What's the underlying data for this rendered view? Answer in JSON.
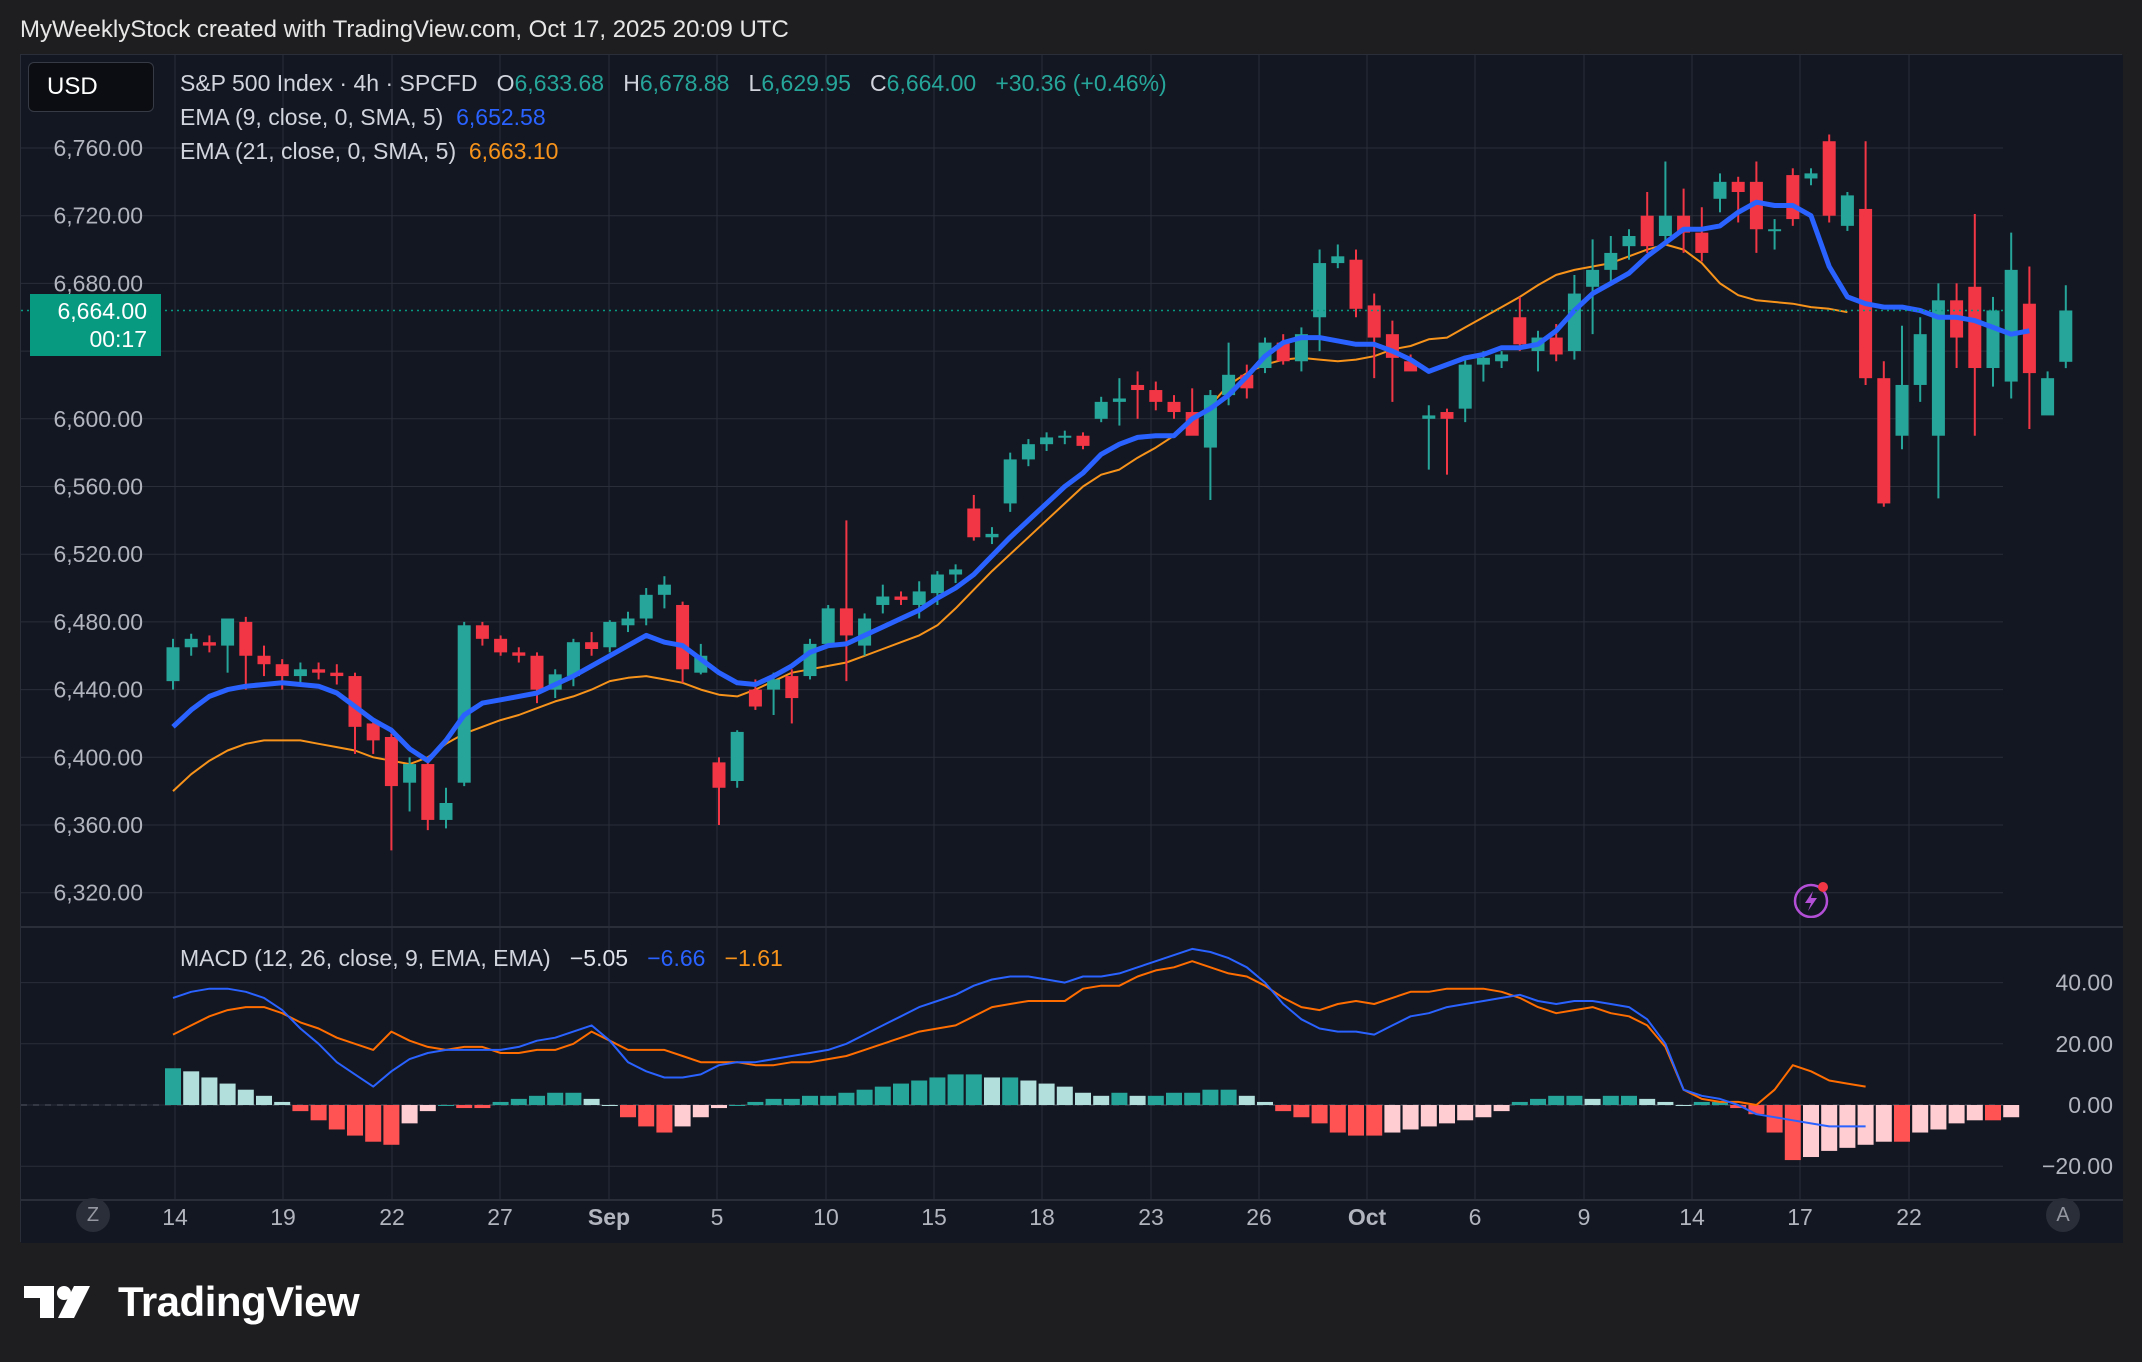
{
  "header": {
    "caption": "MyWeeklyStock created with TradingView.com, Oct 17, 2025 20:09 UTC"
  },
  "currency_button": "USD",
  "legend": {
    "symbol": "S&P 500 Index · 4h · SPCFD",
    "o_label": "O",
    "o_value": "6,633.68",
    "h_label": "H",
    "h_value": "6,678.88",
    "l_label": "L",
    "l_value": "6,629.95",
    "c_label": "C",
    "c_value": "6,664.00",
    "change": "+30.36 (+0.46%)",
    "ema9_label": "EMA (9, close, 0, SMA, 5)",
    "ema9_value": "6,652.58",
    "ema21_label": "EMA (21, close, 0, SMA, 5)",
    "ema21_value": "6,663.10",
    "macd_label": "MACD (12, 26, close, 9, EMA, EMA)",
    "macd_hist": "−5.05",
    "macd_line": "−6.66",
    "macd_signal": "−1.61"
  },
  "price_label": {
    "price": "6,664.00",
    "countdown": "00:17"
  },
  "corner_buttons": {
    "left": "Z",
    "right": "A"
  },
  "brand": {
    "name": "TradingView"
  },
  "colors": {
    "up": "#26a69a",
    "down": "#f23645",
    "ema9": "#2962ff",
    "ema21": "#f7931a",
    "macd": "#2962ff",
    "signal": "#ff6d00",
    "background": "#131722",
    "grid": "#2a2e39"
  },
  "chart_data": [
    {
      "type": "candlestick",
      "title": "S&P 500 Index · 4h · SPCFD",
      "ylim": [
        6300,
        6780
      ],
      "y_ticks": [
        "6,760.00",
        "6,720.00",
        "6,680.00",
        "6,600.00",
        "6,560.00",
        "6,520.00",
        "6,480.00",
        "6,440.00",
        "6,400.00",
        "6,360.00",
        "6,320.00"
      ],
      "x_ticks": [
        "14",
        "19",
        "22",
        "27",
        "Sep",
        "5",
        "10",
        "15",
        "18",
        "23",
        "26",
        "Oct",
        "6",
        "9",
        "14",
        "17",
        "22"
      ],
      "last_price": 6664.0,
      "candles": [
        [
          6445,
          6470,
          6440,
          6465
        ],
        [
          6465,
          6473,
          6460,
          6470
        ],
        [
          6468,
          6472,
          6462,
          6466
        ],
        [
          6466,
          6482,
          6450,
          6482
        ],
        [
          6480,
          6483,
          6440,
          6460
        ],
        [
          6460,
          6466,
          6448,
          6455
        ],
        [
          6455,
          6458,
          6440,
          6448
        ],
        [
          6448,
          6456,
          6443,
          6452
        ],
        [
          6452,
          6456,
          6446,
          6450
        ],
        [
          6450,
          6455,
          6443,
          6448
        ],
        [
          6448,
          6450,
          6402,
          6418
        ],
        [
          6420,
          6422,
          6402,
          6410
        ],
        [
          6412,
          6414,
          6345,
          6383
        ],
        [
          6385,
          6400,
          6368,
          6396
        ],
        [
          6396,
          6398,
          6357,
          6363
        ],
        [
          6363,
          6382,
          6358,
          6373
        ],
        [
          6385,
          6480,
          6383,
          6478
        ],
        [
          6478,
          6480,
          6466,
          6470
        ],
        [
          6470,
          6472,
          6460,
          6462
        ],
        [
          6462,
          6465,
          6456,
          6460
        ],
        [
          6460,
          6462,
          6432,
          6440
        ],
        [
          6440,
          6452,
          6435,
          6449
        ],
        [
          6448,
          6470,
          6442,
          6468
        ],
        [
          6468,
          6474,
          6460,
          6464
        ],
        [
          6465,
          6481,
          6462,
          6480
        ],
        [
          6478,
          6486,
          6474,
          6482
        ],
        [
          6482,
          6500,
          6478,
          6496
        ],
        [
          6496,
          6507,
          6488,
          6502
        ],
        [
          6490,
          6492,
          6444,
          6452
        ],
        [
          6450,
          6467,
          6449,
          6460
        ],
        [
          6397,
          6400,
          6360,
          6382
        ],
        [
          6386,
          6416,
          6382,
          6415
        ],
        [
          6440,
          6446,
          6428,
          6430
        ],
        [
          6440,
          6450,
          6425,
          6446
        ],
        [
          6448,
          6452,
          6420,
          6435
        ],
        [
          6448,
          6470,
          6446,
          6467
        ],
        [
          6467,
          6490,
          6465,
          6488
        ],
        [
          6488,
          6540,
          6445,
          6472
        ],
        [
          6466,
          6485,
          6460,
          6482
        ],
        [
          6490,
          6502,
          6485,
          6495
        ],
        [
          6495,
          6498,
          6490,
          6493
        ],
        [
          6490,
          6504,
          6482,
          6498
        ],
        [
          6497,
          6510,
          6490,
          6508
        ],
        [
          6508,
          6514,
          6503,
          6511
        ],
        [
          6547,
          6555,
          6528,
          6530
        ],
        [
          6530,
          6536,
          6526,
          6532
        ],
        [
          6550,
          6580,
          6545,
          6576
        ],
        [
          6576,
          6588,
          6572,
          6585
        ],
        [
          6585,
          6592,
          6581,
          6589
        ],
        [
          6589,
          6593,
          6585,
          6590
        ],
        [
          6590,
          6592,
          6582,
          6584
        ],
        [
          6600,
          6613,
          6598,
          6610
        ],
        [
          6610,
          6624,
          6596,
          6612
        ],
        [
          6620,
          6628,
          6600,
          6617
        ],
        [
          6617,
          6622,
          6605,
          6610
        ],
        [
          6610,
          6614,
          6600,
          6604
        ],
        [
          6604,
          6618,
          6594,
          6590
        ],
        [
          6583,
          6617,
          6552,
          6614
        ],
        [
          6614,
          6645,
          6608,
          6626
        ],
        [
          6626,
          6632,
          6612,
          6618
        ],
        [
          6630,
          6648,
          6627,
          6645
        ],
        [
          6645,
          6650,
          6632,
          6634
        ],
        [
          6634,
          6654,
          6628,
          6650
        ],
        [
          6660,
          6700,
          6640,
          6692
        ],
        [
          6692,
          6703,
          6689,
          6696
        ],
        [
          6694,
          6700,
          6660,
          6665
        ],
        [
          6667,
          6674,
          6624,
          6648
        ],
        [
          6650,
          6658,
          6610,
          6636
        ],
        [
          6634,
          6638,
          6630,
          6628
        ],
        [
          6600,
          6608,
          6570,
          6602
        ],
        [
          6604,
          6606,
          6567,
          6600
        ],
        [
          6606,
          6636,
          6598,
          6632
        ],
        [
          6632,
          6640,
          6622,
          6636
        ],
        [
          6634,
          6640,
          6630,
          6638
        ],
        [
          6660,
          6672,
          6640,
          6644
        ],
        [
          6640,
          6652,
          6628,
          6648
        ],
        [
          6648,
          6656,
          6634,
          6638
        ],
        [
          6640,
          6685,
          6635,
          6674
        ],
        [
          6678,
          6706,
          6650,
          6688
        ],
        [
          6688,
          6708,
          6680,
          6698
        ],
        [
          6702,
          6712,
          6694,
          6708
        ],
        [
          6720,
          6734,
          6698,
          6702
        ],
        [
          6708,
          6752,
          6704,
          6720
        ],
        [
          6720,
          6736,
          6698,
          6710
        ],
        [
          6710,
          6725,
          6693,
          6698
        ],
        [
          6730,
          6745,
          6722,
          6740
        ],
        [
          6740,
          6743,
          6716,
          6734
        ],
        [
          6740,
          6752,
          6698,
          6712
        ],
        [
          6712,
          6718,
          6700,
          6712
        ],
        [
          6744,
          6748,
          6714,
          6718
        ],
        [
          6742,
          6748,
          6738,
          6745
        ],
        [
          6764,
          6768,
          6716,
          6720
        ],
        [
          6714,
          6734,
          6711,
          6732
        ],
        [
          6724,
          6764,
          6620,
          6624
        ],
        [
          6624,
          6634,
          6548,
          6550
        ],
        [
          6590,
          6655,
          6582,
          6620
        ],
        [
          6620,
          6660,
          6610,
          6650
        ],
        [
          6590,
          6680,
          6553,
          6670
        ],
        [
          6670,
          6680,
          6630,
          6648
        ],
        [
          6678,
          6721,
          6590,
          6630
        ],
        [
          6630,
          6672,
          6619,
          6664
        ],
        [
          6622,
          6710,
          6612,
          6688
        ],
        [
          6668,
          6690,
          6594,
          6627
        ],
        [
          6602,
          6628,
          6603,
          6624
        ],
        [
          6633.68,
          6678.88,
          6629.95,
          6664.0
        ]
      ],
      "ema9": [
        6418,
        6428,
        6436,
        6440,
        6442,
        6443,
        6444,
        6443,
        6442,
        6438,
        6430,
        6422,
        6416,
        6405,
        6398,
        6410,
        6425,
        6432,
        6434,
        6436,
        6438,
        6443,
        6448,
        6454,
        6460,
        6466,
        6472,
        6468,
        6466,
        6458,
        6450,
        6444,
        6443,
        6448,
        6454,
        6462,
        6466,
        6467,
        6472,
        6477,
        6482,
        6487,
        6494,
        6500,
        6508,
        6519,
        6530,
        6540,
        6550,
        6560,
        6568,
        6579,
        6585,
        6589,
        6590,
        6590,
        6600,
        6606,
        6614,
        6625,
        6637,
        6645,
        6648,
        6648,
        6646,
        6644,
        6644,
        6640,
        6635,
        6628,
        6632,
        6636,
        6638,
        6642,
        6642,
        6644,
        6652,
        6664,
        6674,
        6680,
        6686,
        6696,
        6704,
        6712,
        6712,
        6714,
        6722,
        6728,
        6726,
        6726,
        6720,
        6690,
        6672,
        6668,
        6666,
        6666,
        6664,
        6660,
        6660,
        6658,
        6654,
        6650,
        6652
      ],
      "ema21": [
        6380,
        6390,
        6398,
        6404,
        6408,
        6410,
        6410,
        6410,
        6408,
        6406,
        6404,
        6400,
        6398,
        6396,
        6400,
        6408,
        6414,
        6418,
        6422,
        6425,
        6429,
        6433,
        6436,
        6440,
        6445,
        6447,
        6448,
        6446,
        6444,
        6440,
        6437,
        6436,
        6440,
        6445,
        6450,
        6452,
        6454,
        6456,
        6460,
        6464,
        6468,
        6472,
        6478,
        6488,
        6499,
        6510,
        6520,
        6530,
        6540,
        6550,
        6560,
        6567,
        6570,
        6577,
        6583,
        6590,
        6598,
        6608,
        6620,
        6627,
        6632,
        6635,
        6636,
        6635,
        6634,
        6635,
        6637,
        6641,
        6643,
        6647,
        6648,
        6654,
        6660,
        6666,
        6672,
        6679,
        6685,
        6688,
        6690,
        6692,
        6696,
        6700,
        6703,
        6700,
        6692,
        6680,
        6673,
        6670,
        6669,
        6668,
        6666,
        6665,
        6663
      ]
    },
    {
      "type": "macd",
      "title": "MACD (12, 26, close, 9, EMA, EMA)",
      "ylim": [
        -25,
        48
      ],
      "y_ticks": [
        "40.00",
        "20.00",
        "0.00",
        "−20.00"
      ],
      "histogram": [
        12,
        11,
        9,
        7,
        5,
        3,
        1,
        -2,
        -5,
        -8,
        -10,
        -12,
        -13,
        -6,
        -2,
        0,
        -1,
        -1,
        1,
        2,
        3,
        4,
        4,
        2,
        0,
        -4,
        -7,
        -9,
        -7,
        -4,
        -1,
        0,
        1,
        2,
        2,
        3,
        3,
        4,
        5,
        6,
        7,
        8,
        9,
        10,
        10,
        9,
        9,
        8,
        7,
        6,
        4,
        3,
        4,
        3,
        3,
        4,
        4,
        5,
        5,
        3,
        1,
        -2,
        -4,
        -6,
        -9,
        -10,
        -10,
        -9,
        -8,
        -7,
        -6,
        -5,
        -4,
        -2,
        1,
        2,
        3,
        3,
        2,
        3,
        3,
        2,
        1,
        0,
        1,
        1,
        -1,
        -3,
        -9,
        -18,
        -17,
        -15,
        -14,
        -13,
        -12,
        -12,
        -9,
        -8,
        -6,
        -5,
        -5,
        -4
      ],
      "macd": [
        35,
        37,
        38,
        38,
        37,
        35,
        31,
        25,
        20,
        14,
        10,
        6,
        11,
        15,
        17,
        18,
        18,
        18,
        18,
        19,
        21,
        22,
        24,
        26,
        21,
        14,
        11,
        9,
        9,
        10,
        13,
        14,
        14,
        15,
        16,
        17,
        18,
        20,
        23,
        26,
        29,
        32,
        34,
        36,
        39,
        41,
        42,
        42,
        41,
        40,
        42,
        42,
        43,
        45,
        47,
        49,
        51,
        50,
        48,
        45,
        40,
        33,
        28,
        25,
        24,
        24,
        23,
        26,
        29,
        30,
        32,
        33,
        34,
        35,
        36,
        34,
        33,
        34,
        34,
        33,
        32,
        28,
        20,
        5,
        3,
        2,
        0,
        -3,
        -4,
        -5,
        -6,
        -7,
        -7,
        -7
      ]
    }
  ]
}
